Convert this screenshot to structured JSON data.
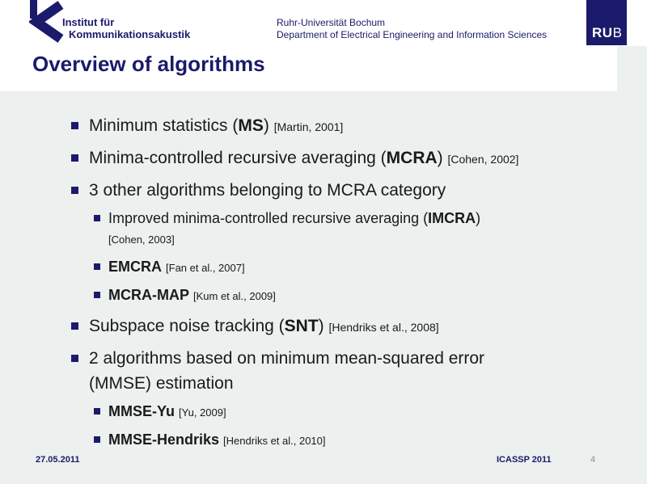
{
  "header": {
    "institute_line1": "Institut für",
    "institute_line2": "Kommunikationsakustik",
    "university_line1": "Ruhr-Universität Bochum",
    "university_line2": "Department of Electrical Engineering and Information Sciences",
    "rub_logo_bold": "RU",
    "rub_logo_light": "B"
  },
  "title": "Overview of algorithms",
  "bullets": [
    {
      "level": 1,
      "pre": "Minimum statistics (",
      "bold": "MS",
      "post": ") ",
      "cite": "[Martin, 2001]",
      "cite_own_line": false,
      "line2": ""
    },
    {
      "level": 1,
      "pre": "Minima-controlled recursive averaging (",
      "bold": "MCRA",
      "post": ") ",
      "cite": "[Cohen, 2002]",
      "cite_own_line": false,
      "line2": ""
    },
    {
      "level": 1,
      "pre": "3 other algorithms belonging to MCRA category",
      "bold": "",
      "post": "",
      "cite": "",
      "cite_own_line": false,
      "line2": ""
    },
    {
      "level": 2,
      "pre": "Improved minima-controlled recursive averaging (",
      "bold": "IMCRA",
      "post": ")",
      "cite": "[Cohen, 2003]",
      "cite_own_line": true,
      "line2": ""
    },
    {
      "level": 2,
      "pre": "",
      "bold": "EMCRA",
      "post": " ",
      "cite": "[Fan et al., 2007]",
      "cite_own_line": false,
      "line2": ""
    },
    {
      "level": 2,
      "pre": "",
      "bold": "MCRA-MAP",
      "post": " ",
      "cite": "[Kum et al., 2009]",
      "cite_own_line": false,
      "line2": ""
    },
    {
      "level": 1,
      "pre": "Subspace noise tracking (",
      "bold": "SNT",
      "post": ") ",
      "cite": "[Hendriks et al., 2008]",
      "cite_own_line": false,
      "line2": ""
    },
    {
      "level": 1,
      "pre": "2 algorithms based on minimum mean-squared error",
      "bold": "",
      "post": "",
      "cite": "",
      "cite_own_line": false,
      "line2": "(MMSE) estimation"
    },
    {
      "level": 2,
      "pre": "",
      "bold": "MMSE-Yu",
      "post": " ",
      "cite": "[Yu, 2009]",
      "cite_own_line": false,
      "line2": ""
    },
    {
      "level": 2,
      "pre": "",
      "bold": "MMSE-Hendriks",
      "post": " ",
      "cite": "[Hendriks et al., 2010]",
      "cite_own_line": false,
      "line2": ""
    }
  ],
  "footer": {
    "date": "27.05.2011",
    "conference": "ICASSP 2011",
    "page_number": "4"
  },
  "colors": {
    "navy": "#1B1A6B",
    "panel_gray": "#ECF0EF",
    "body_text": "#1A1A1A",
    "page_number_gray": "#8E8E8E"
  }
}
